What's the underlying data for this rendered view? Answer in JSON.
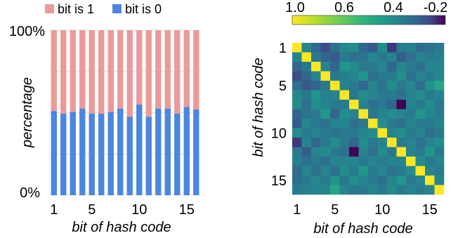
{
  "chart_data": [
    {
      "type": "bar",
      "stacked": true,
      "normalized": true,
      "categories": [
        1,
        2,
        3,
        4,
        5,
        6,
        7,
        8,
        9,
        10,
        11,
        12,
        13,
        14,
        15,
        16
      ],
      "series": [
        {
          "name": "bit is 0",
          "color": "#4b86e0",
          "values": [
            51,
            49.5,
            50.5,
            52.5,
            49.5,
            49.5,
            50.5,
            52.5,
            47.5,
            55,
            47.5,
            52.5,
            52.5,
            49.5,
            53.5,
            52
          ]
        },
        {
          "name": "bit is 1",
          "color": "#eb9a9a",
          "values": [
            49,
            50.5,
            49.5,
            47.5,
            50.5,
            50.5,
            49.5,
            47.5,
            52.5,
            45,
            52.5,
            47.5,
            47.5,
            50.5,
            46.5,
            48
          ]
        }
      ],
      "legend": [
        "bit is 1",
        "bit is 0"
      ],
      "legend_position": "top",
      "xticks": [
        "1",
        "5",
        "10",
        "15"
      ],
      "yticks": [
        "100%",
        "0%"
      ],
      "xlabel": "bit of hash code",
      "ylabel": "percentage",
      "ylim": [
        0,
        100
      ],
      "grid": "horizontal"
    },
    {
      "type": "heatmap",
      "size": 16,
      "colormap": "viridis",
      "colorbar_ticks": [
        "1.0",
        "0.6",
        "0.4",
        "-0.2"
      ],
      "colorbar_range": [
        1.0,
        -0.3
      ],
      "colorbar_position": "top",
      "xticks": [
        "1",
        "5",
        "10",
        "15"
      ],
      "yticks": [
        "1",
        "5",
        "10",
        "15"
      ],
      "xlabel": "bit of hash code",
      "ylabel": "bit of hash code",
      "values": [
        [
          1.0,
          0.1,
          -0.05,
          -0.15,
          0.0,
          0.12,
          0.15,
          -0.05,
          -0.1,
          0.15,
          -0.2,
          0.05,
          0.08,
          -0.02,
          0.0,
          0.05
        ],
        [
          0.1,
          1.0,
          0.05,
          -0.05,
          -0.1,
          0.05,
          0.0,
          0.02,
          0.12,
          0.05,
          0.1,
          -0.08,
          0.0,
          0.1,
          0.05,
          0.08
        ],
        [
          -0.05,
          0.05,
          1.0,
          0.1,
          -0.05,
          0.2,
          0.15,
          0.05,
          0.05,
          0.1,
          -0.05,
          0.1,
          0.05,
          0.0,
          0.12,
          0.1
        ],
        [
          -0.15,
          -0.05,
          0.1,
          1.0,
          0.05,
          0.08,
          0.1,
          0.2,
          0.0,
          0.05,
          0.05,
          0.15,
          0.0,
          0.1,
          0.05,
          0.12
        ],
        [
          0.0,
          -0.1,
          -0.05,
          0.05,
          1.0,
          0.1,
          0.05,
          -0.05,
          0.1,
          0.02,
          0.15,
          0.05,
          0.1,
          0.0,
          0.18,
          0.3
        ],
        [
          0.12,
          0.05,
          0.2,
          0.08,
          0.1,
          1.0,
          0.05,
          0.15,
          0.1,
          0.05,
          0.05,
          0.0,
          0.1,
          0.15,
          0.05,
          0.1
        ],
        [
          0.15,
          0.0,
          0.15,
          0.1,
          0.05,
          0.05,
          1.0,
          0.1,
          0.0,
          0.05,
          -0.05,
          -0.3,
          0.1,
          0.05,
          0.15,
          0.05
        ],
        [
          -0.05,
          0.02,
          0.05,
          0.2,
          -0.05,
          0.15,
          0.1,
          1.0,
          0.05,
          0.1,
          0.15,
          0.1,
          0.05,
          0.2,
          0.1,
          0.05
        ],
        [
          -0.1,
          0.12,
          0.05,
          0.0,
          0.1,
          0.1,
          0.0,
          0.05,
          1.0,
          0.15,
          0.05,
          0.0,
          0.1,
          0.05,
          0.05,
          0.1
        ],
        [
          0.15,
          0.05,
          0.1,
          0.05,
          0.02,
          0.05,
          0.05,
          0.1,
          0.15,
          1.0,
          0.1,
          0.15,
          0.05,
          0.1,
          0.0,
          0.05
        ],
        [
          -0.2,
          0.1,
          -0.05,
          0.05,
          0.15,
          0.05,
          -0.05,
          0.15,
          0.05,
          0.1,
          1.0,
          0.05,
          0.1,
          0.0,
          0.1,
          0.15
        ],
        [
          0.05,
          -0.08,
          0.1,
          0.15,
          0.05,
          0.0,
          -0.3,
          0.1,
          0.0,
          0.15,
          0.05,
          1.0,
          0.1,
          0.05,
          0.2,
          0.05
        ],
        [
          0.08,
          0.0,
          0.05,
          0.0,
          0.1,
          0.1,
          0.1,
          0.05,
          0.1,
          0.05,
          0.1,
          0.1,
          1.0,
          0.15,
          0.05,
          0.1
        ],
        [
          -0.02,
          0.1,
          0.0,
          0.1,
          0.0,
          0.15,
          0.05,
          0.2,
          0.05,
          0.1,
          0.0,
          0.05,
          0.15,
          1.0,
          0.1,
          0.05
        ],
        [
          0.0,
          0.05,
          0.12,
          0.05,
          0.18,
          0.05,
          0.15,
          0.1,
          0.05,
          0.0,
          0.1,
          0.2,
          0.05,
          0.1,
          1.0,
          0.1
        ],
        [
          0.05,
          0.08,
          0.1,
          0.12,
          0.3,
          0.1,
          0.05,
          0.05,
          0.1,
          0.05,
          0.15,
          0.05,
          0.1,
          0.05,
          0.1,
          1.0
        ]
      ]
    }
  ]
}
